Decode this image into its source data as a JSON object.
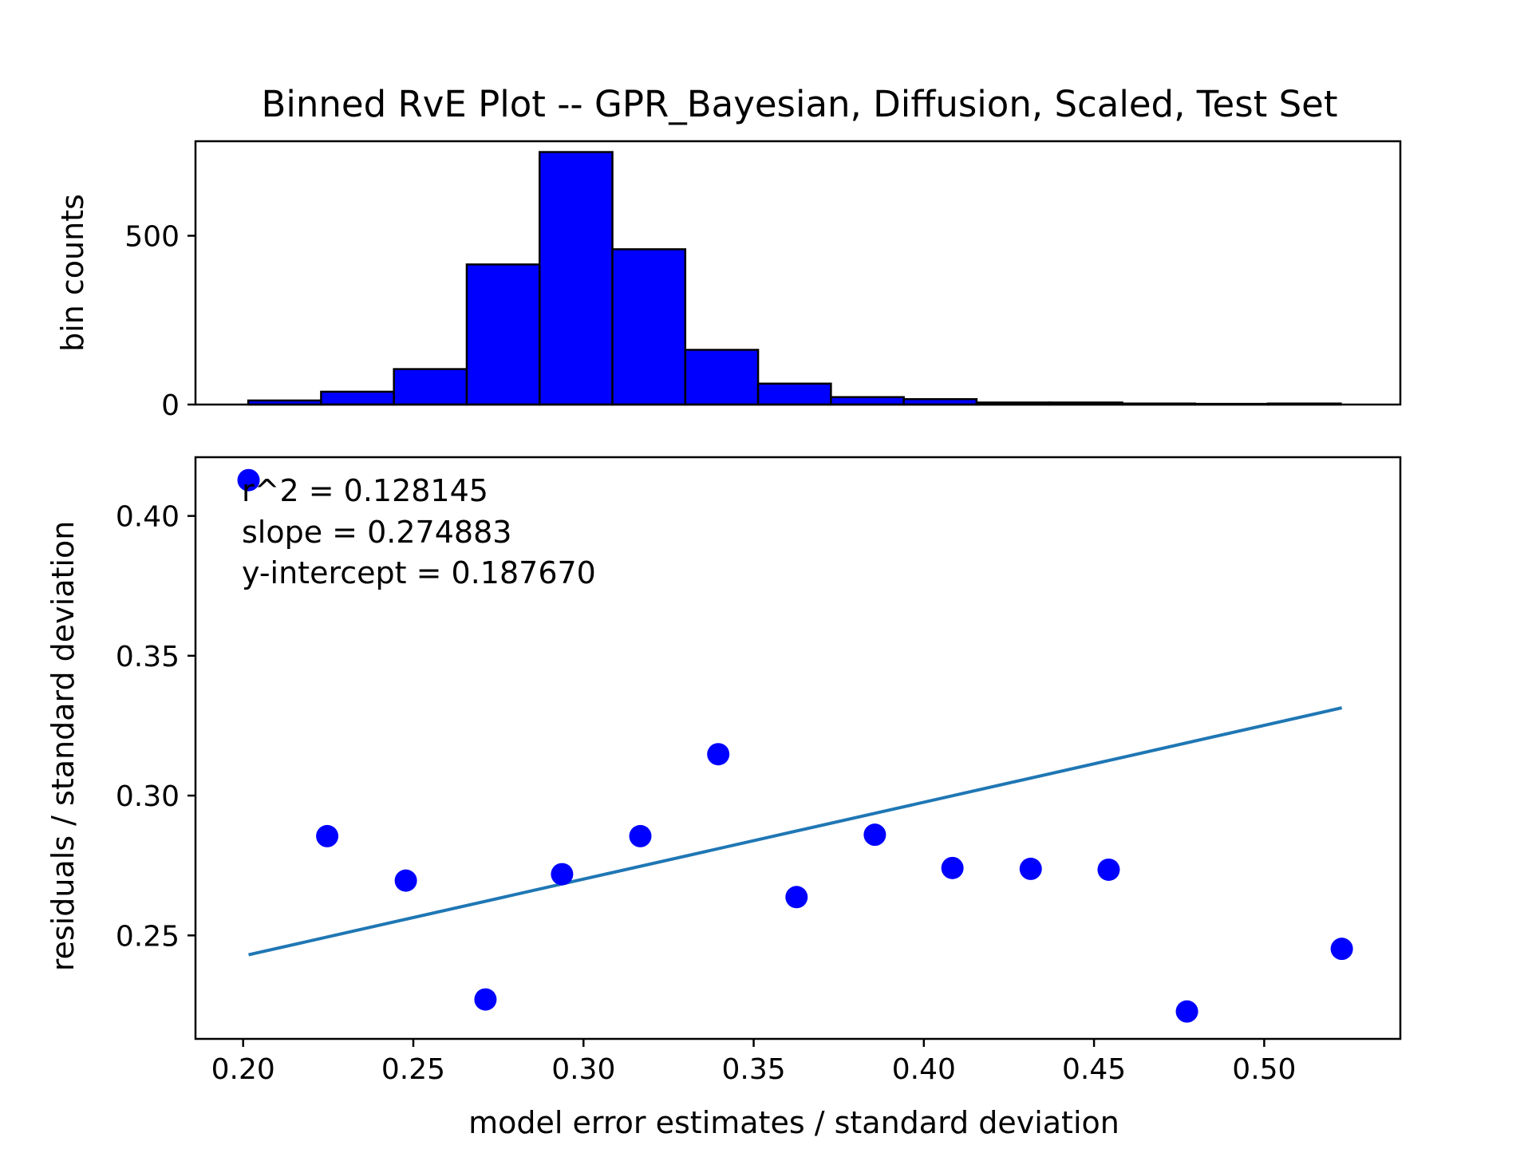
{
  "title": "Binned RvE Plot -- GPR_Bayesian, Diffusion, Scaled, Test Set",
  "colors": {
    "bar": "#0000ff",
    "point": "#0000ff",
    "fit_line": "#1f77b4",
    "axes": "#000000"
  },
  "stats": {
    "r2": "r^2 = 0.128145",
    "slope": "slope = 0.274883",
    "intercept": "y-intercept = 0.187670"
  },
  "chart_data": [
    {
      "type": "bar",
      "ylabel": "bin counts",
      "xlim": [
        0.186,
        0.54
      ],
      "ylim": [
        0,
        780
      ],
      "yticks": [
        0,
        500
      ],
      "ytick_labels": [
        "0",
        "500"
      ],
      "bin_edges": [
        0.2015,
        0.2229,
        0.2443,
        0.2657,
        0.2871,
        0.3085,
        0.3299,
        0.3513,
        0.3727,
        0.3941,
        0.4155,
        0.4369,
        0.4583,
        0.4797,
        0.5011,
        0.5225
      ],
      "values": [
        12,
        38,
        105,
        415,
        748,
        460,
        162,
        62,
        22,
        16,
        6,
        6,
        3,
        2,
        3
      ],
      "show_xtick_labels": false
    },
    {
      "type": "scatter",
      "xlabel": "model error estimates / standard deviation",
      "ylabel": "residuals / standard deviation",
      "xlim": [
        0.186,
        0.54
      ],
      "ylim": [
        0.213,
        0.421
      ],
      "xticks": [
        0.2,
        0.25,
        0.3,
        0.35,
        0.4,
        0.45,
        0.5
      ],
      "xtick_labels": [
        "0.20",
        "0.25",
        "0.30",
        "0.35",
        "0.40",
        "0.45",
        "0.50"
      ],
      "yticks": [
        0.25,
        0.3,
        0.35,
        0.4
      ],
      "ytick_labels": [
        "0.25",
        "0.30",
        "0.35",
        "0.40"
      ],
      "points": {
        "x": [
          0.2016,
          0.2247,
          0.2478,
          0.2712,
          0.2937,
          0.3167,
          0.3396,
          0.3626,
          0.3856,
          0.4084,
          0.4314,
          0.4543,
          0.4773,
          0.5228
        ],
        "y": [
          0.4128,
          0.2855,
          0.2696,
          0.2271,
          0.2719,
          0.2855,
          0.3148,
          0.2637,
          0.286,
          0.2741,
          0.2738,
          0.2735,
          0.2228,
          0.2452
        ]
      },
      "fit_line": {
        "slope": 0.274883,
        "intercept": 0.18767,
        "x_range": [
          0.2016,
          0.5228
        ]
      }
    }
  ]
}
